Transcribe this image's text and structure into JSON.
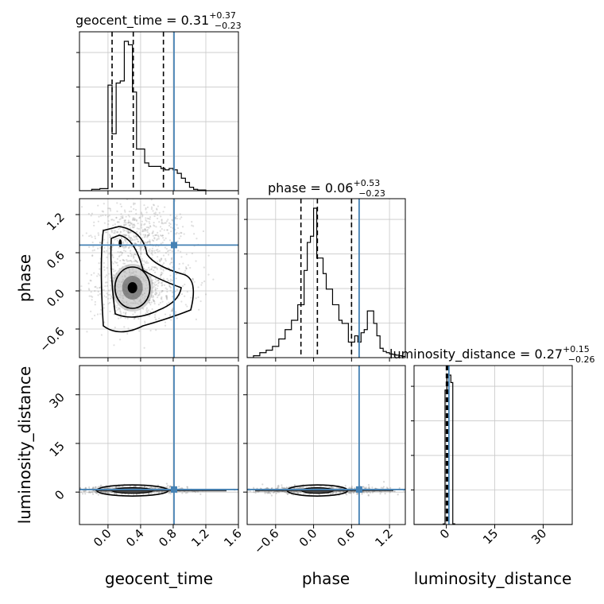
{
  "chart_data": {
    "type": "corner",
    "parameters": [
      "geocent_time",
      "phase",
      "luminosity_distance"
    ],
    "truths": {
      "geocent_time": 0.81,
      "phase": 0.72,
      "luminosity_distance": 0.8
    },
    "colors": {
      "truth": "#4682b4",
      "contour": "#000000",
      "grid": "#c8c8c8",
      "points": "#8c8c8c"
    },
    "grid": true,
    "titles": {
      "geocent_time": {
        "label": "geocent_time",
        "median": "0.31",
        "plus": "+0.37",
        "minus": "−0.23"
      },
      "phase": {
        "label": "phase",
        "median": "0.06",
        "plus": "+0.53",
        "minus": "−0.23"
      },
      "luminosity_distance": {
        "label": "luminosity_distance",
        "median": "0.27",
        "plus": "+0.15",
        "minus": "−0.26"
      }
    },
    "axes": {
      "geocent_time": {
        "range": [
          -0.35,
          1.6
        ],
        "ticks": [
          0.0,
          0.4,
          0.8,
          1.2,
          1.6
        ],
        "tick_labels": [
          "0.0",
          "0.4",
          "0.8",
          "1.2",
          "1.6"
        ]
      },
      "phase": {
        "range": [
          -1.05,
          1.45
        ],
        "ticks": [
          -0.6,
          0.0,
          0.6,
          1.2
        ],
        "tick_labels": [
          "−0.6",
          "0.0",
          "0.6",
          "1.2"
        ]
      },
      "luminosity_distance": {
        "range": [
          -10,
          39
        ],
        "ticks": [
          0,
          15,
          30
        ],
        "tick_labels": [
          "0",
          "15",
          "30"
        ]
      }
    },
    "histograms": [
      {
        "param": "geocent_time",
        "bins": [
          -0.2,
          -0.1,
          0.0,
          0.05,
          0.1,
          0.15,
          0.2,
          0.25,
          0.3,
          0.35,
          0.4,
          0.45,
          0.5,
          0.55,
          0.6,
          0.65,
          0.7,
          0.75,
          0.8,
          0.85,
          0.9,
          0.95,
          1.0,
          1.05,
          1.1,
          1.15,
          1.2,
          1.25,
          1.3,
          1.35,
          1.4,
          1.45,
          1.5,
          1.6
        ],
        "counts": [
          2,
          3,
          152,
          82,
          155,
          158,
          215,
          210,
          142,
          60,
          60,
          40,
          35,
          35,
          35,
          32,
          30,
          32,
          30,
          25,
          18,
          12,
          5,
          2,
          1,
          1,
          0,
          0,
          0,
          0,
          0,
          0,
          0
        ],
        "quantiles": [
          0.05,
          0.31,
          0.68
        ]
      },
      {
        "param": "phase",
        "bins": [
          -0.95,
          -0.85,
          -0.75,
          -0.65,
          -0.55,
          -0.45,
          -0.35,
          -0.25,
          -0.2,
          -0.15,
          -0.1,
          -0.05,
          0.0,
          0.05,
          0.1,
          0.15,
          0.2,
          0.25,
          0.3,
          0.35,
          0.4,
          0.45,
          0.5,
          0.55,
          0.6,
          0.65,
          0.7,
          0.75,
          0.8,
          0.85,
          0.9,
          0.95,
          1.0,
          1.05,
          1.1,
          1.15,
          1.2,
          1.25,
          1.3,
          1.35,
          1.4,
          1.45
        ],
        "counts": [
          3,
          8,
          12,
          18,
          30,
          45,
          60,
          85,
          85,
          140,
          185,
          195,
          240,
          160,
          160,
          135,
          110,
          110,
          85,
          85,
          60,
          55,
          55,
          25,
          25,
          35,
          25,
          40,
          45,
          75,
          75,
          55,
          35,
          15,
          10,
          8,
          6,
          5,
          4,
          3,
          2
        ],
        "quantiles": [
          -0.2,
          0.06,
          0.6
        ]
      },
      {
        "param": "luminosity_distance",
        "bins": [
          -1.0,
          -0.4,
          0.2,
          0.8,
          1.4,
          2.0,
          2.6
        ],
        "counts": [
          4,
          900,
          1000,
          1000,
          950,
          5
        ],
        "quantiles": [
          0.01,
          0.27,
          0.42
        ]
      }
    ]
  }
}
